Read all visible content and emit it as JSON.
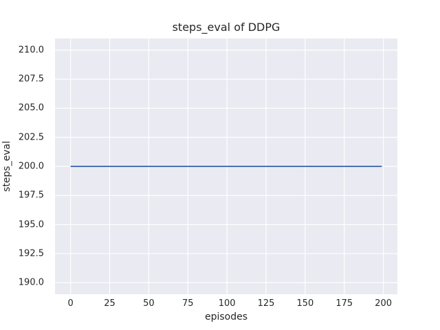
{
  "figure": {
    "title": "steps_eval of DDPG",
    "xlabel": "episodes",
    "ylabel": "steps_eval"
  },
  "chart_data": {
    "type": "line",
    "title": "steps_eval of DDPG",
    "xlabel": "episodes",
    "ylabel": "steps_eval",
    "series": [
      {
        "name": "steps_eval",
        "color": "#4c72b0",
        "x": [
          0,
          199
        ],
        "y": [
          200,
          200
        ],
        "note": "constant value 200 for every evaluated episode from 0 to 199"
      }
    ],
    "xlim": [
      -9.95,
      208.95
    ],
    "ylim": [
      189,
      211
    ],
    "xticks": [
      0,
      25,
      50,
      75,
      100,
      125,
      150,
      175,
      200
    ],
    "xtick_labels": [
      "0",
      "25",
      "50",
      "75",
      "100",
      "125",
      "150",
      "175",
      "200"
    ],
    "yticks": [
      190.0,
      192.5,
      195.0,
      197.5,
      200.0,
      202.5,
      205.0,
      207.5,
      210.0
    ],
    "ytick_labels": [
      "190.0",
      "192.5",
      "195.0",
      "197.5",
      "200.0",
      "202.5",
      "205.0",
      "207.5",
      "210.0"
    ],
    "grid": true,
    "legend": false,
    "style": {
      "plot_background": "#eaeaf2",
      "grid_color": "#ffffff",
      "text_color": "#262626",
      "line_width": 2
    }
  }
}
